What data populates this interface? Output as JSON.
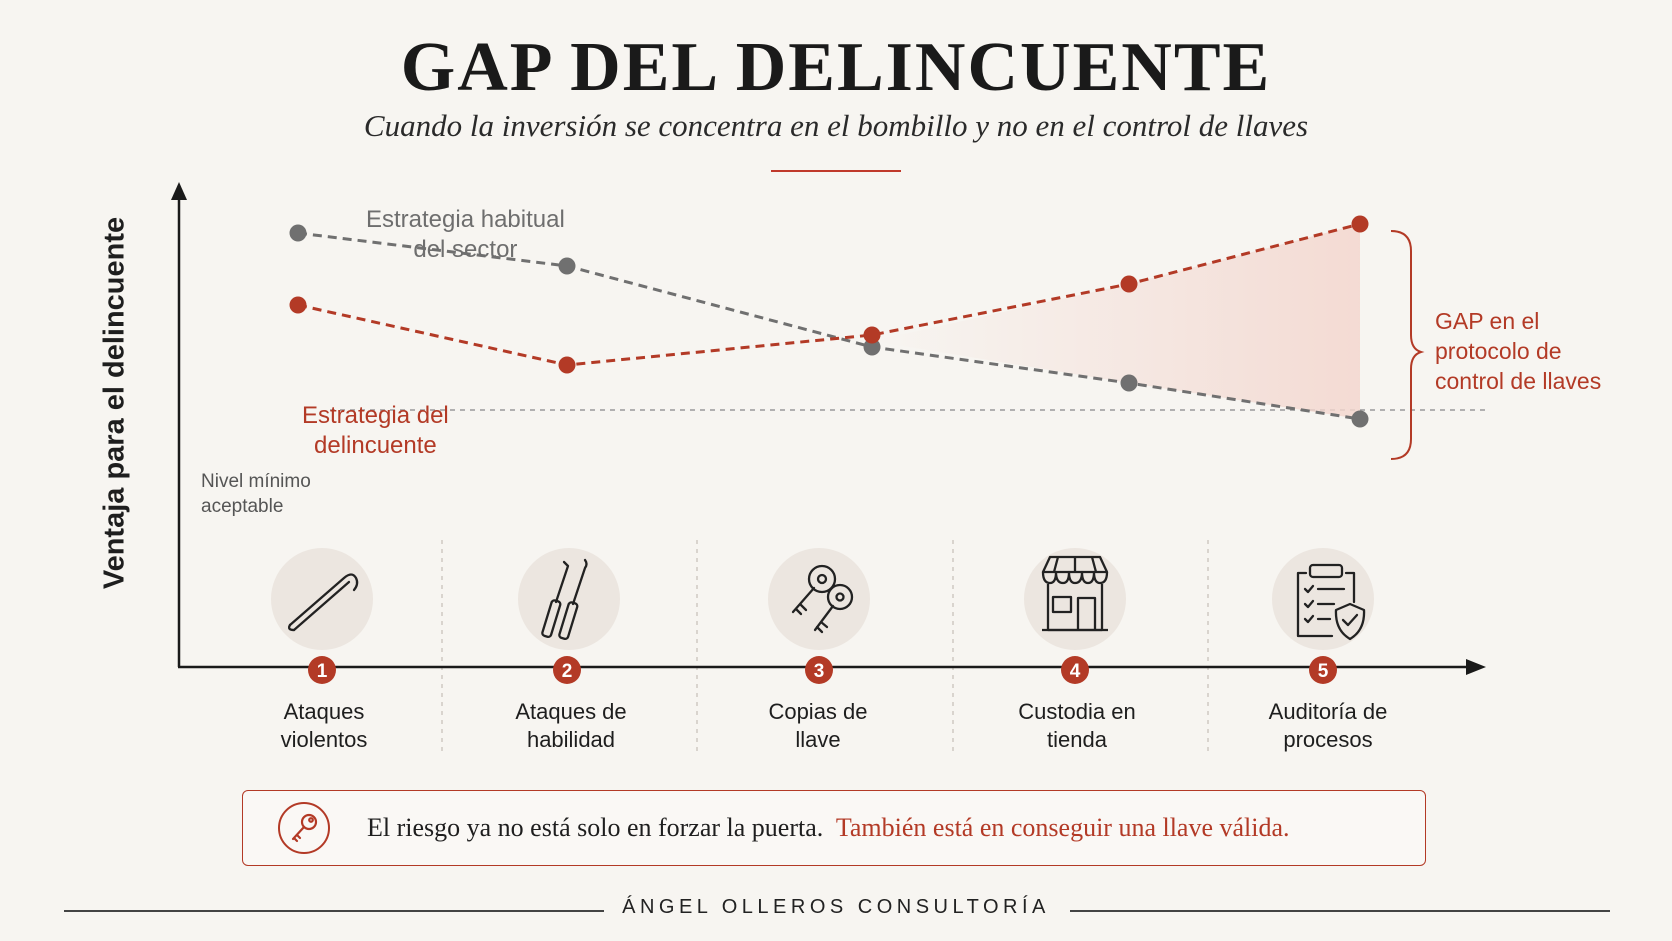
{
  "title": "GAP DEL DELINCUENTE",
  "subtitle": "Cuando la inversión se concentra en el bombillo y no en el control de llaves",
  "chart_data": {
    "type": "line",
    "ylabel": "Ventaja para el delincuente",
    "categories": [
      "1",
      "2",
      "3",
      "4",
      "5"
    ],
    "stages": [
      {
        "num": "1",
        "line1": "Ataques",
        "line2": "violentos",
        "icon": "crowbar-icon"
      },
      {
        "num": "2",
        "line1": "Ataques de",
        "line2": "habilidad",
        "icon": "lock-picks-icon"
      },
      {
        "num": "3",
        "line1": "Copias de",
        "line2": "llave",
        "icon": "keys-icon"
      },
      {
        "num": "4",
        "line1": "Custodia en",
        "line2": "tienda",
        "icon": "storefront-icon"
      },
      {
        "num": "5",
        "line1": "Auditoría de",
        "line2": "procesos",
        "icon": "clipboard-shield-icon"
      }
    ],
    "ylim": [
      0,
      100
    ],
    "series": [
      {
        "line1": "Estrategia habitual",
        "line2": "del sector",
        "color": "#707070",
        "values": [
          89,
          78,
          51,
          39,
          27
        ]
      },
      {
        "line1": "Estrategia del",
        "line2": "delincuente",
        "color": "#b33a26",
        "values": [
          65,
          45,
          55,
          72,
          92
        ]
      }
    ],
    "threshold": {
      "line1": "Nivel mínimo",
      "line2": "aceptable",
      "value": 30
    },
    "gap": {
      "line1": "GAP en el",
      "line2": "protocolo de",
      "line3": "control de llaves"
    }
  },
  "callout": {
    "icon": "key-icon",
    "text_dark": "El riesgo ya no está solo en forzar la puerta.",
    "text_red": "También está en conseguir una llave válida."
  },
  "footer": "ÁNGEL OLLEROS CONSULTORÍA",
  "colors": {
    "accent": "#b33a26",
    "gray": "#707070",
    "background": "#f7f5f1"
  }
}
